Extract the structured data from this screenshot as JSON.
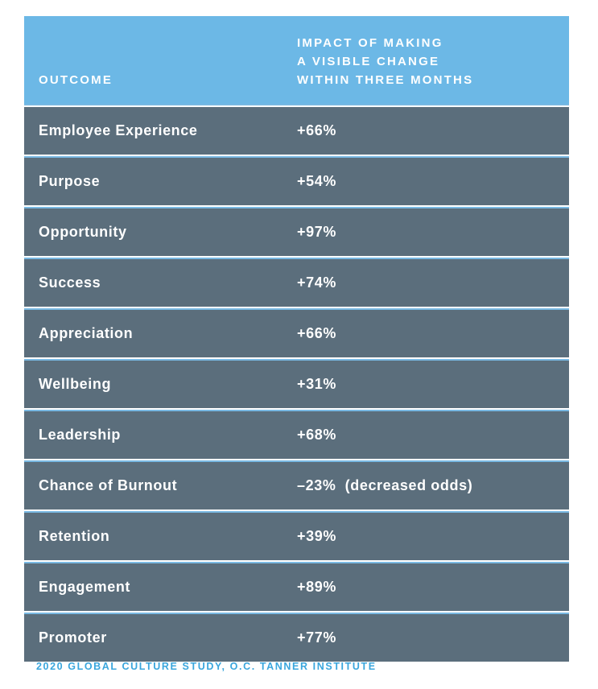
{
  "table": {
    "header": {
      "outcome": "OUTCOME",
      "impact": "IMPACT OF MAKING\nA VISIBLE CHANGE\nWITHIN THREE MONTHS"
    },
    "rows": [
      {
        "outcome": "Employee Experience",
        "value": "+66%"
      },
      {
        "outcome": "Purpose",
        "value": "+54%"
      },
      {
        "outcome": "Opportunity",
        "value": "+97%"
      },
      {
        "outcome": "Success",
        "value": "+74%"
      },
      {
        "outcome": "Appreciation",
        "value": "+66%"
      },
      {
        "outcome": "Wellbeing",
        "value": "+31%"
      },
      {
        "outcome": "Leadership",
        "value": "+68%"
      },
      {
        "outcome": "Chance of Burnout",
        "value": "–23%  (decreased odds)"
      },
      {
        "outcome": "Retention",
        "value": "+39%"
      },
      {
        "outcome": "Engagement",
        "value": "+89%"
      },
      {
        "outcome": "Promoter",
        "value": "+77%"
      }
    ]
  },
  "source": "2020 GLOBAL CULTURE STUDY, O.C. TANNER INSTITUTE",
  "colors": {
    "header_bg": "#6cb8e6",
    "row_bg": "#5b6e7c",
    "separator": "#79b9e3",
    "source_text": "#3aa6dd"
  }
}
